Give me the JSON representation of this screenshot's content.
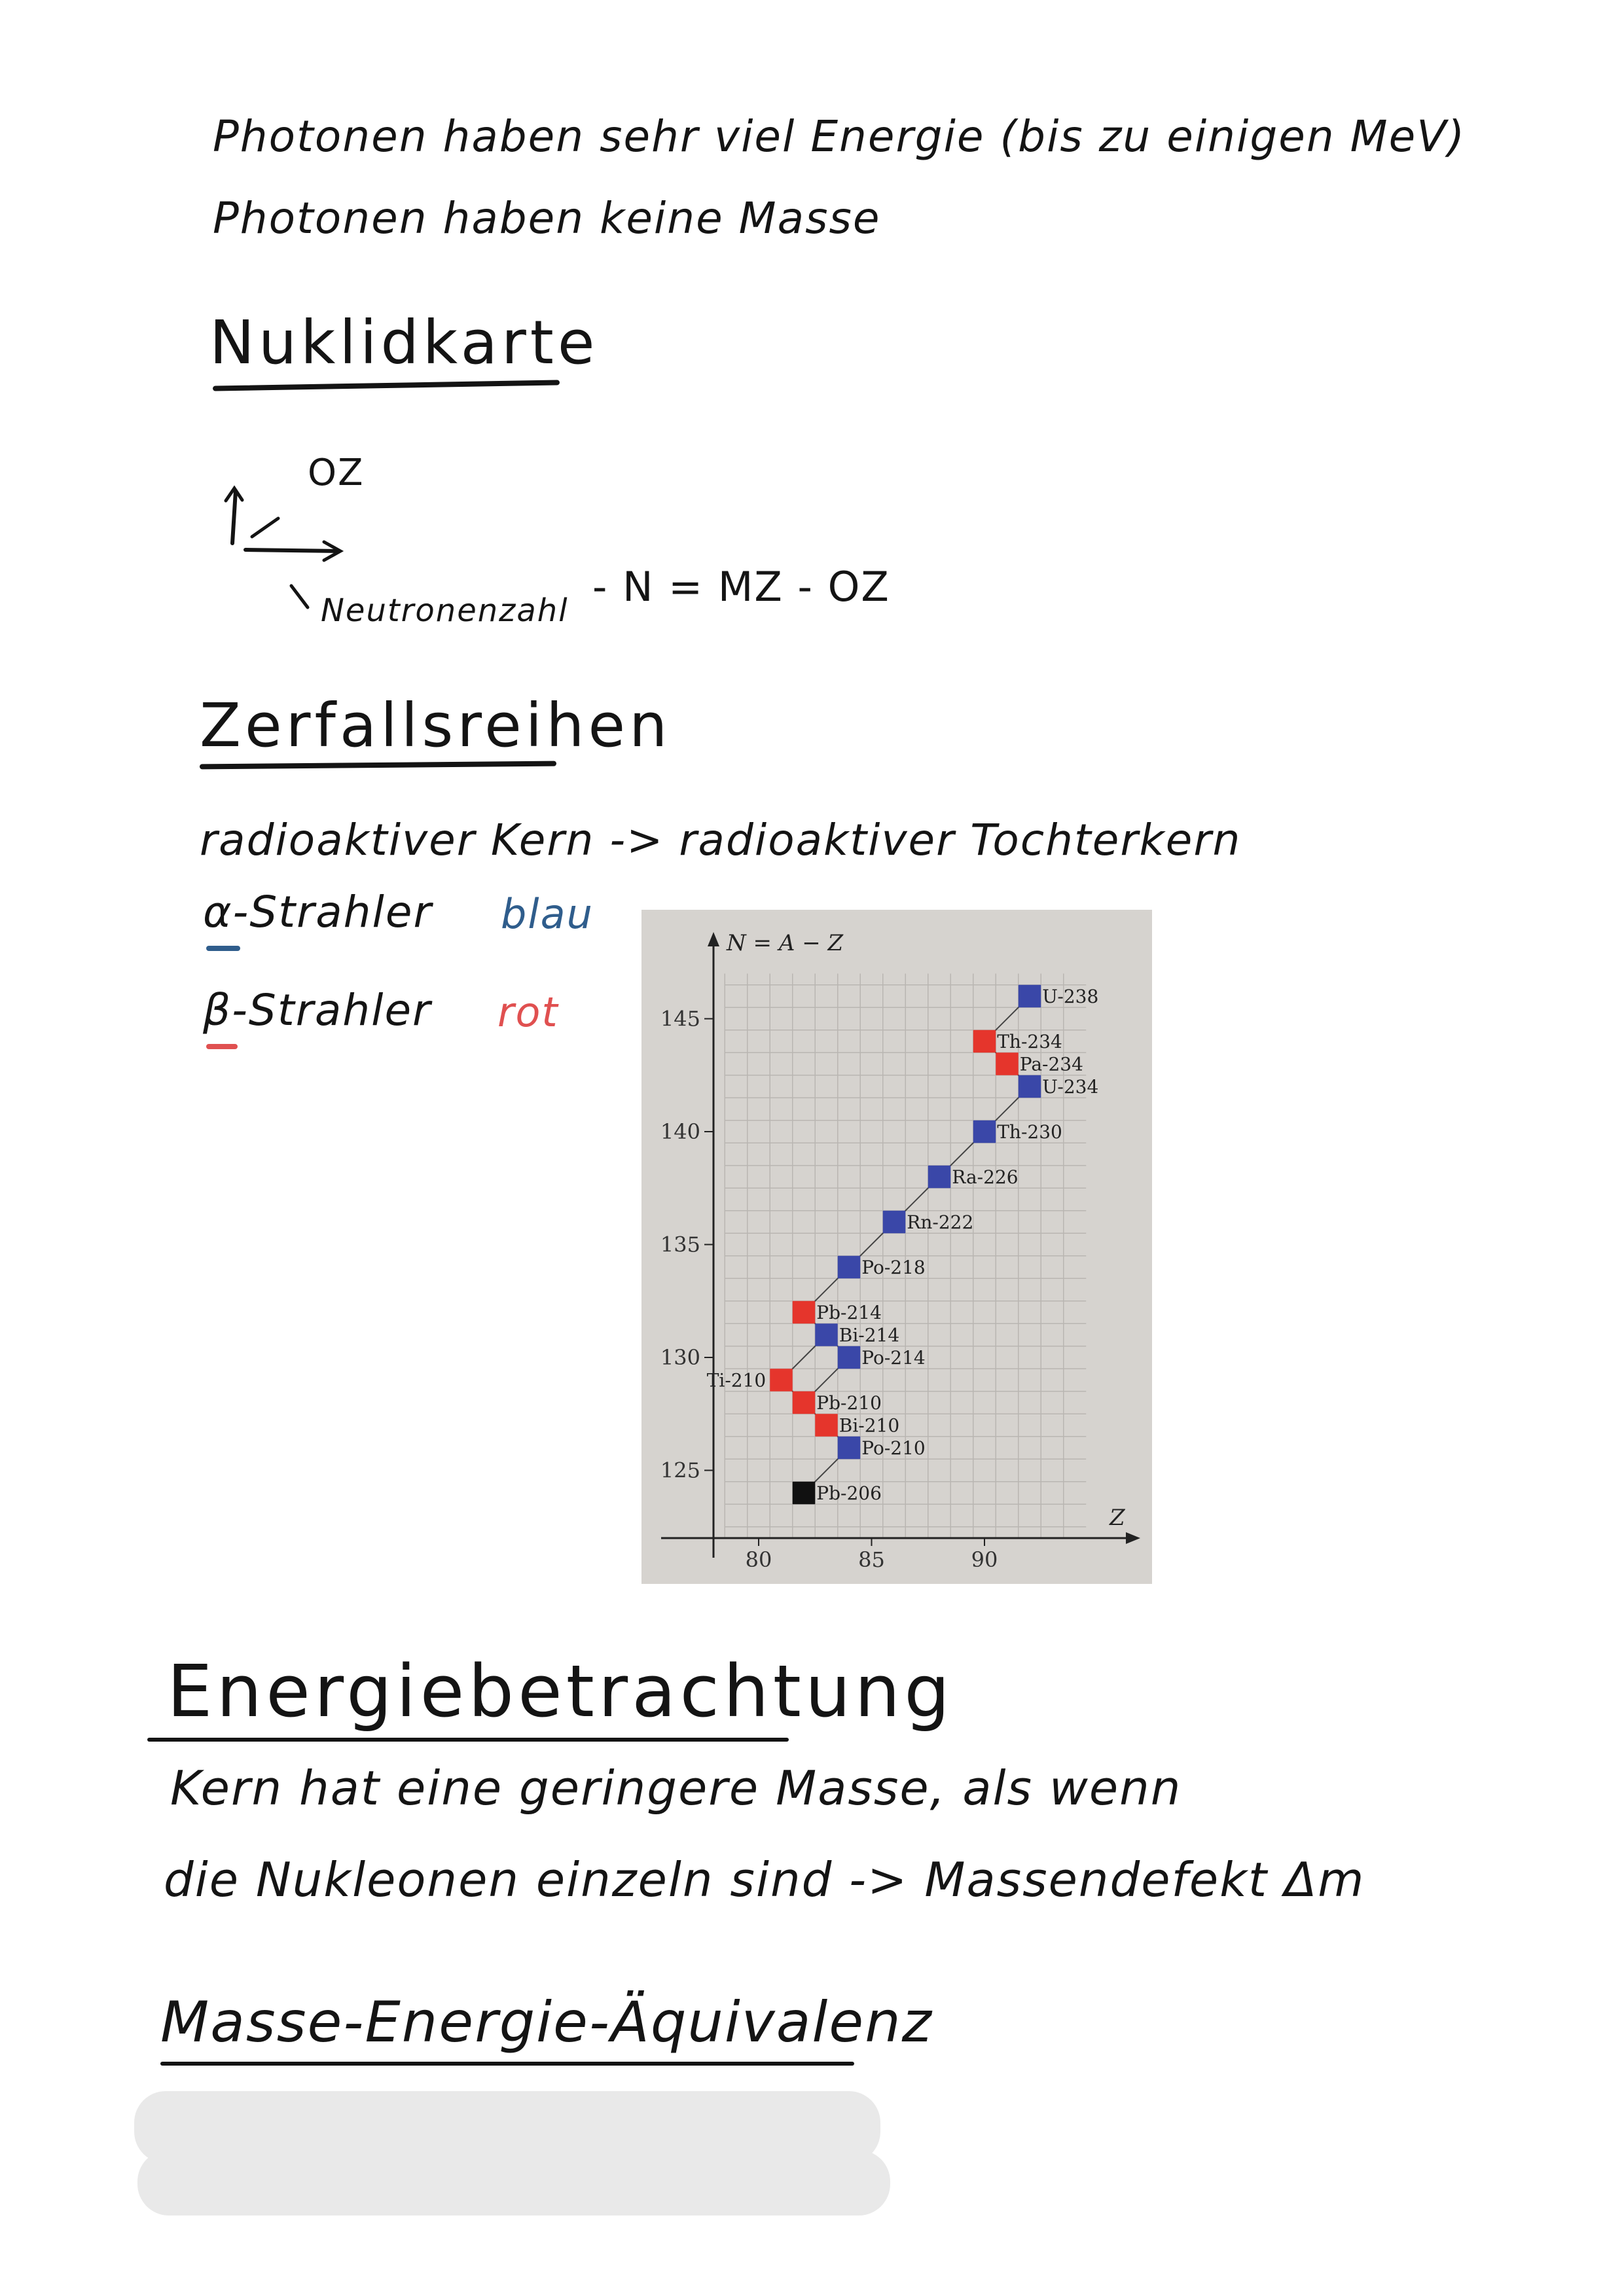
{
  "notes": {
    "photon_line1": "Photonen haben sehr viel Energie (bis zu einigen MeV)",
    "photon_line2": "Photonen haben keine Masse",
    "nuklid_heading": "Nuklidkarte",
    "oz_label": "OZ",
    "neutron_label": "Neutronenzahl",
    "formula": "- N = MZ - OZ",
    "zerfall_heading": "Zerfallsreihen",
    "zerfall_line": "radioaktiver Kern -> radioaktiver Tochterkern",
    "alpha_label": "α-Strahler",
    "alpha_color_word": "blau",
    "beta_label": "β-Strahler",
    "beta_color_word": "rot",
    "energie_heading": "Energiebetrachtung",
    "kern_line1": "Kern hat eine geringere Masse, als wenn",
    "kern_line2": "die Nukleonen einzeln sind -> Massendefekt Δm",
    "masse_heading": "Masse-Energie-Äquivalenz"
  },
  "colors": {
    "alpha": "#3a47a8",
    "beta": "#e5352c",
    "stable": "#111111",
    "ink": "#141414",
    "blue_ink": "#2f5d8c",
    "red_ink": "#e05050"
  },
  "chart_data": {
    "type": "scatter",
    "title": "",
    "xlabel": "Z",
    "ylabel": "N = A − Z",
    "xlim": [
      78,
      95
    ],
    "ylim": [
      122,
      147
    ],
    "x_ticks": [
      80,
      85,
      90
    ],
    "y_ticks": [
      125,
      130,
      135,
      140,
      145
    ],
    "grid": true,
    "nuclides": [
      {
        "label": "U-238",
        "z": 92,
        "n": 146,
        "decay": "alpha"
      },
      {
        "label": "Th-234",
        "z": 90,
        "n": 144,
        "decay": "beta"
      },
      {
        "label": "Pa-234",
        "z": 91,
        "n": 143,
        "decay": "beta"
      },
      {
        "label": "U-234",
        "z": 92,
        "n": 142,
        "decay": "alpha"
      },
      {
        "label": "Th-230",
        "z": 90,
        "n": 140,
        "decay": "alpha"
      },
      {
        "label": "Ra-226",
        "z": 88,
        "n": 138,
        "decay": "alpha"
      },
      {
        "label": "Rn-222",
        "z": 86,
        "n": 136,
        "decay": "alpha"
      },
      {
        "label": "Po-218",
        "z": 84,
        "n": 134,
        "decay": "alpha"
      },
      {
        "label": "Pb-214",
        "z": 82,
        "n": 132,
        "decay": "beta"
      },
      {
        "label": "Bi-214",
        "z": 83,
        "n": 131,
        "decay": "alpha"
      },
      {
        "label": "Po-214",
        "z": 84,
        "n": 130,
        "decay": "alpha"
      },
      {
        "label": "Ti-210",
        "z": 81,
        "n": 129,
        "decay": "beta"
      },
      {
        "label": "Pb-210",
        "z": 82,
        "n": 128,
        "decay": "beta"
      },
      {
        "label": "Bi-210",
        "z": 83,
        "n": 127,
        "decay": "beta"
      },
      {
        "label": "Po-210",
        "z": 84,
        "n": 126,
        "decay": "alpha"
      },
      {
        "label": "Pb-206",
        "z": 82,
        "n": 124,
        "decay": "stable"
      }
    ],
    "decay_path": [
      "U-238",
      "Th-234",
      "Pa-234",
      "U-234",
      "Th-230",
      "Ra-226",
      "Rn-222",
      "Po-218",
      "Pb-214",
      "Bi-214",
      "Po-214",
      "Pb-210",
      "Bi-210",
      "Po-210",
      "Pb-206"
    ],
    "branch_path": [
      "Bi-214",
      "Ti-210",
      "Pb-210"
    ]
  }
}
